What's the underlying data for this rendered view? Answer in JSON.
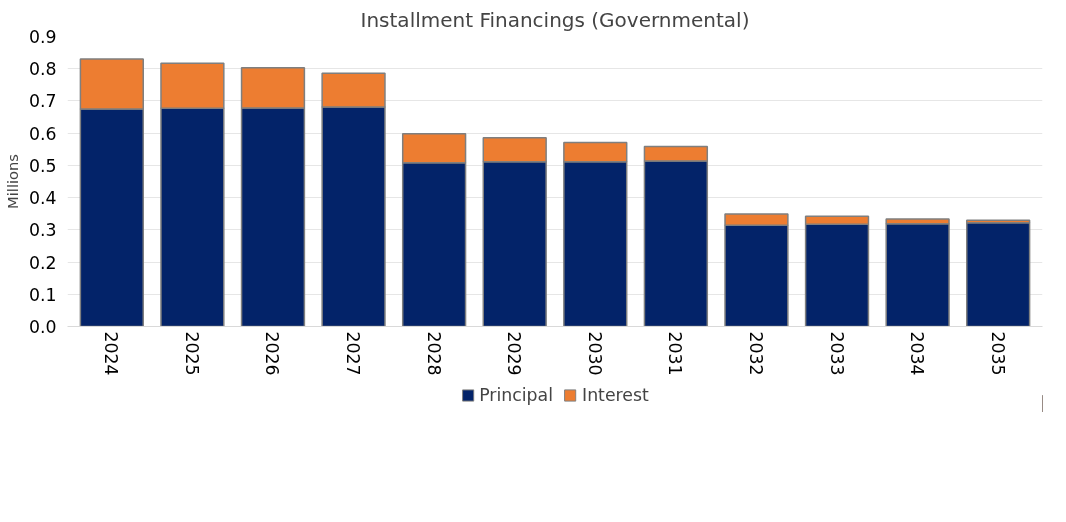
{
  "chart_data": {
    "type": "bar",
    "title": "Installment Financings (Governmental)",
    "ylabel": "Millions",
    "categories": [
      "2024",
      "2025",
      "2026",
      "2027",
      "2028",
      "2029",
      "2030",
      "2031",
      "2032",
      "2033",
      "2034",
      "2035"
    ],
    "stacked": true,
    "series": [
      {
        "name": "Principal",
        "color": "#032369",
        "values": [
          0.675,
          0.677,
          0.678,
          0.681,
          0.508,
          0.511,
          0.511,
          0.514,
          0.314,
          0.317,
          0.319,
          0.322
        ]
      },
      {
        "name": "Interest",
        "color": "#ed7d31",
        "values": [
          0.155,
          0.14,
          0.125,
          0.105,
          0.09,
          0.075,
          0.06,
          0.045,
          0.035,
          0.025,
          0.015,
          0.008
        ]
      }
    ],
    "ylim": [
      0,
      0.9
    ],
    "yticks": [
      {
        "value": 0,
        "label": "0.0"
      },
      0.1,
      0.2,
      0.3,
      0.4,
      0.5,
      0.6,
      0.7,
      0.8,
      0.9
    ],
    "grid": "y",
    "legend": "bottom"
  }
}
